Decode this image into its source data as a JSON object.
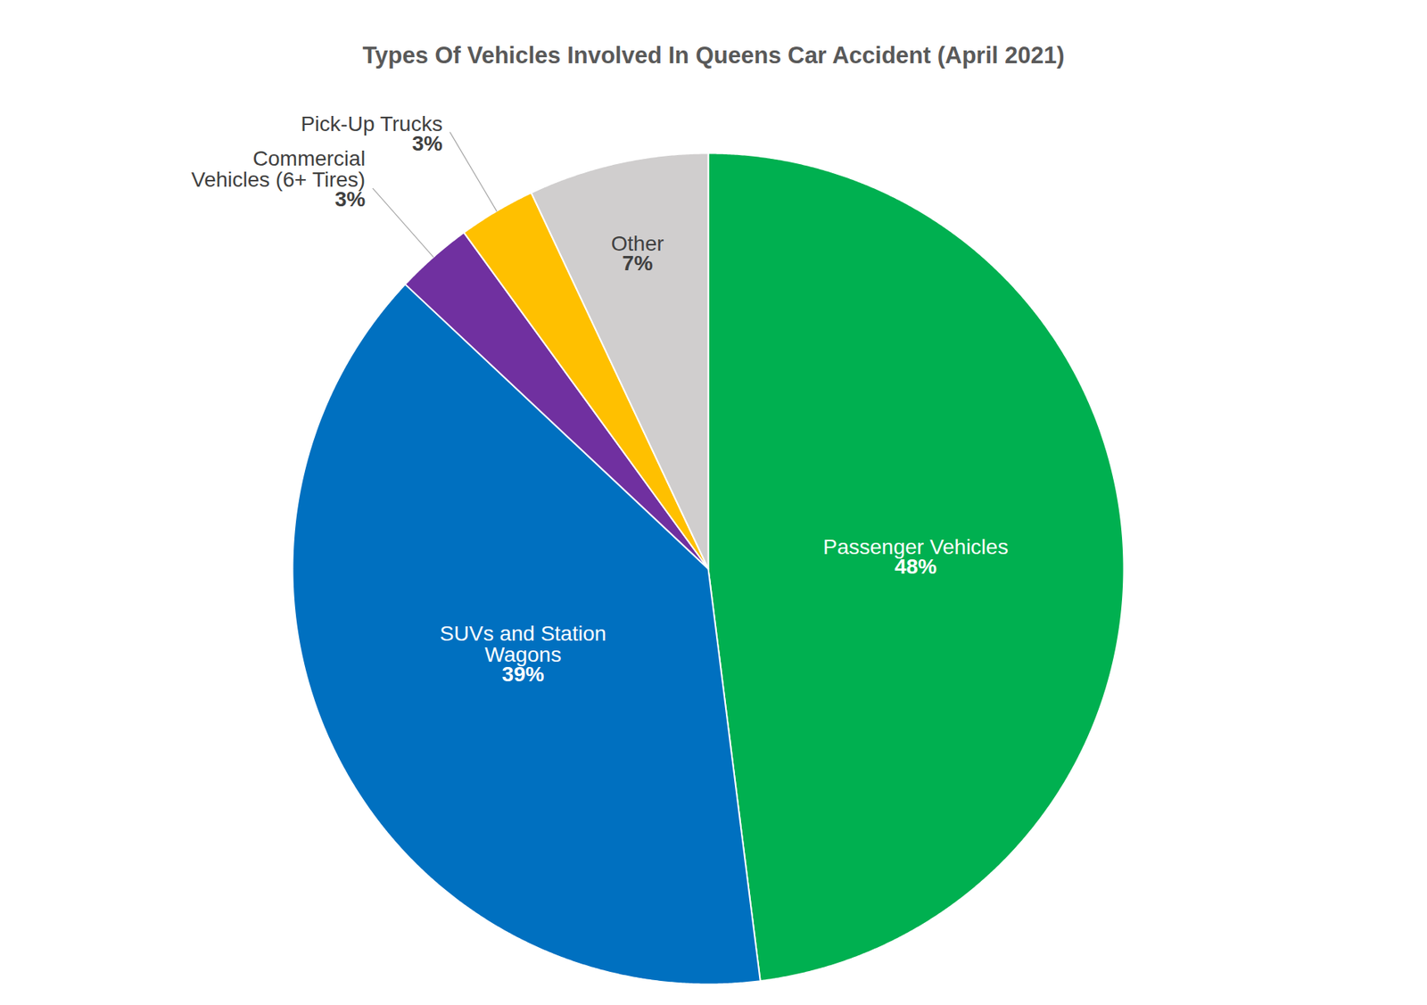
{
  "chart_data": {
    "type": "pie",
    "title": "Types Of Vehicles Involved In Queens Car Accident (April 2021)",
    "categories": [
      "Passenger Vehicles",
      "SUVs and Station Wagons",
      "Commercial Vehicles (6+ Tires)",
      "Pick-Up Trucks",
      "Other"
    ],
    "values": [
      48,
      39,
      3,
      3,
      7
    ],
    "value_labels": [
      "48%",
      "39%",
      "3%",
      "3%",
      "7%"
    ],
    "colors": [
      "#00b050",
      "#0070c0",
      "#7030a0",
      "#ffc000",
      "#d0cece"
    ],
    "data_labels": true
  }
}
